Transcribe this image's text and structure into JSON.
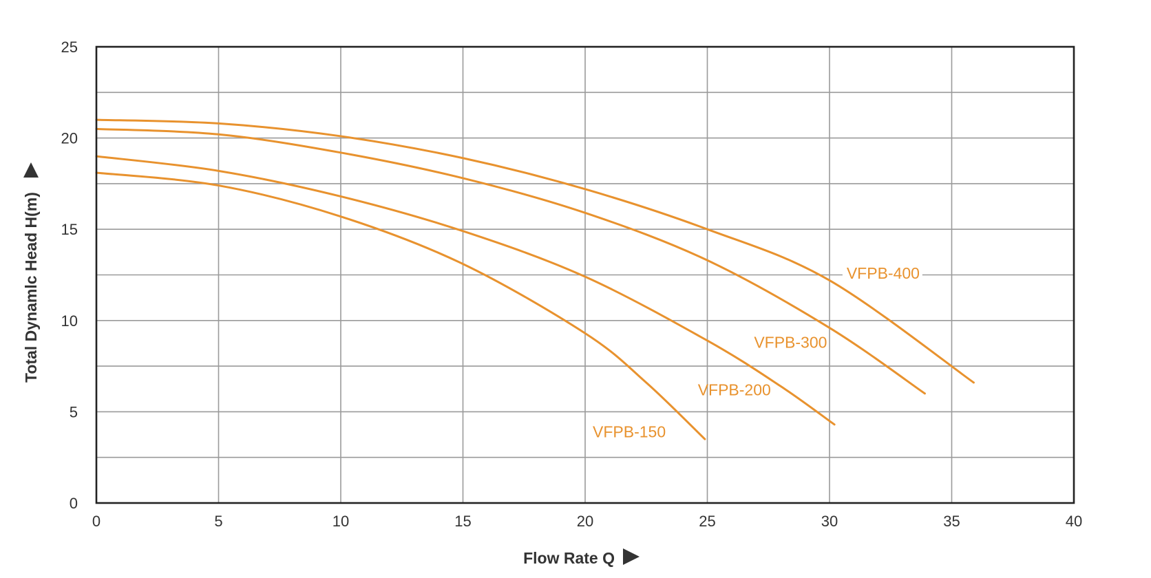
{
  "chart_data": {
    "type": "line",
    "xlabel": "Flow Rate Q",
    "ylabel": "Total Dynamlc Head H(m)",
    "xlim": [
      0,
      40
    ],
    "ylim": [
      0,
      25
    ],
    "x_ticks": [
      "0",
      "5",
      "10",
      "15",
      "20",
      "25",
      "30",
      "35",
      "40"
    ],
    "y_ticks": [
      "0",
      "5",
      "10",
      "15",
      "20",
      "25"
    ],
    "grid": true,
    "line_color": "#E8922E",
    "series": [
      {
        "name": "VFPB-150",
        "x": [
          0,
          5,
          10,
          15,
          20,
          22.5,
          24.9
        ],
        "y": [
          18.1,
          17.4,
          15.7,
          13.1,
          9.3,
          6.6,
          3.5
        ]
      },
      {
        "name": "VFPB-200",
        "x": [
          0,
          5,
          10,
          15,
          20,
          25,
          28,
          30.2
        ],
        "y": [
          19.0,
          18.2,
          16.8,
          14.9,
          12.4,
          8.9,
          6.4,
          4.3
        ]
      },
      {
        "name": "VFPB-300",
        "x": [
          0,
          5,
          10,
          15,
          20,
          25,
          30,
          33.9
        ],
        "y": [
          20.5,
          20.2,
          19.2,
          17.8,
          15.9,
          13.3,
          9.6,
          6.0
        ]
      },
      {
        "name": "VFPB-400",
        "x": [
          0,
          5,
          10,
          15,
          20,
          25,
          30,
          35.9
        ],
        "y": [
          21.0,
          20.8,
          20.1,
          18.9,
          17.2,
          15.0,
          12.2,
          6.6
        ]
      }
    ]
  }
}
